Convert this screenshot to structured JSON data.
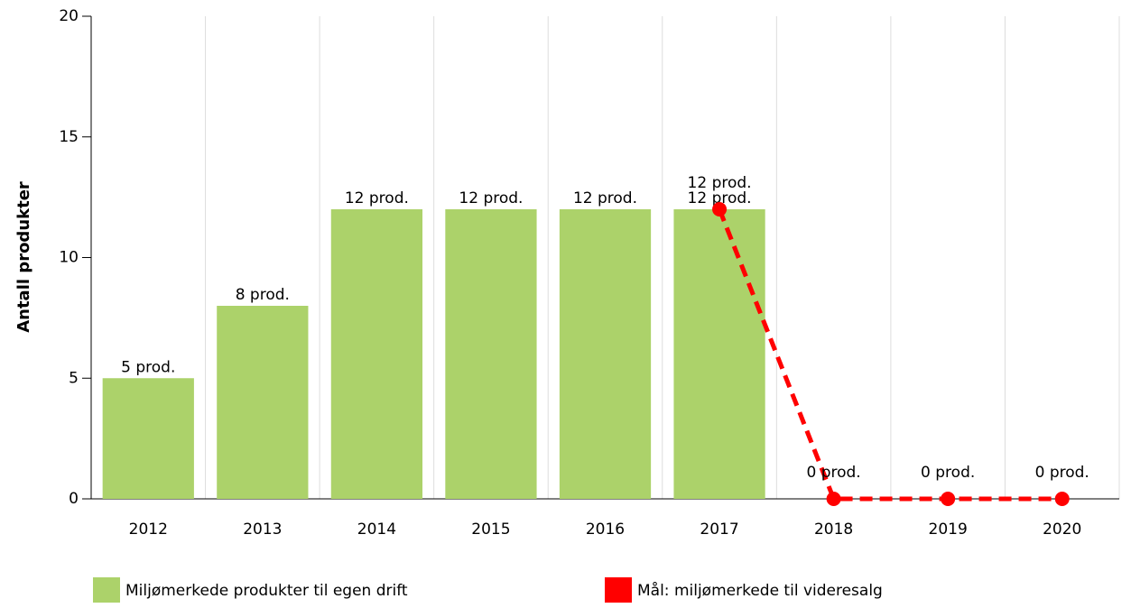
{
  "chart_data": {
    "type": "bar",
    "y_label": "Antall produkter",
    "categories": [
      "2012",
      "2013",
      "2014",
      "2015",
      "2016",
      "2017",
      "2018",
      "2019",
      "2020"
    ],
    "series": [
      {
        "name": "Miljømerkede produkter til egen drift",
        "type": "bar",
        "color": "#acd26a",
        "values": [
          5,
          8,
          12,
          12,
          12,
          12,
          null,
          null,
          null
        ],
        "value_labels": [
          "5 prod.",
          "8 prod.",
          "12 prod.",
          "12 prod.",
          "12 prod.",
          "12 prod.",
          null,
          null,
          null
        ]
      },
      {
        "name": "Mål: miljømerkede til videresalg",
        "type": "line",
        "color": "#ff0000",
        "values": [
          null,
          null,
          null,
          null,
          null,
          12,
          0,
          0,
          0
        ],
        "value_labels": [
          null,
          null,
          null,
          null,
          null,
          "12 prod.",
          "0 prod.",
          "0 prod.",
          "0 prod."
        ]
      }
    ],
    "ylim": [
      0,
      20
    ],
    "yticks": [
      0,
      5,
      10,
      15,
      20
    ],
    "grid": true
  }
}
